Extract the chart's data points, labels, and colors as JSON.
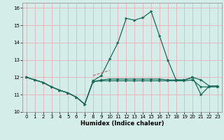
{
  "xlabel": "Humidex (Indice chaleur)",
  "xlim": [
    -0.5,
    23.5
  ],
  "ylim": [
    10,
    16.3
  ],
  "yticks": [
    10,
    11,
    12,
    13,
    14,
    15,
    16
  ],
  "xtick_labels": [
    "0",
    "1",
    "2",
    "3",
    "4",
    "5",
    "6",
    "7",
    "8",
    "9",
    "10",
    "11",
    "12",
    "13",
    "14",
    "15",
    "16",
    "17",
    "18",
    "19",
    "20",
    "21",
    "22",
    "23"
  ],
  "bg_color": "#d4ede8",
  "grid_color": "#e8b0b8",
  "line_color": "#1a6b5a",
  "red_line_color": "#c86060",
  "series_main": [
    12.0,
    11.85,
    11.7,
    11.45,
    11.25,
    11.1,
    10.85,
    10.45,
    11.8,
    12.1,
    13.05,
    14.0,
    15.4,
    15.3,
    15.45,
    15.8,
    14.4,
    13.0,
    11.85,
    11.85,
    12.0,
    11.0,
    11.5,
    11.5
  ],
  "series_flat_high": [
    12.0,
    11.85,
    11.7,
    11.45,
    11.25,
    11.1,
    10.85,
    10.45,
    11.75,
    11.85,
    11.9,
    11.9,
    11.9,
    11.9,
    11.9,
    11.9,
    11.9,
    11.85,
    11.85,
    11.85,
    12.0,
    11.85,
    11.5,
    11.5
  ],
  "series_flat_low": [
    12.0,
    11.85,
    11.7,
    11.45,
    11.25,
    11.1,
    10.85,
    10.45,
    11.75,
    11.8,
    11.8,
    11.8,
    11.8,
    11.8,
    11.8,
    11.8,
    11.8,
    11.8,
    11.8,
    11.8,
    11.85,
    11.45,
    11.45,
    11.45
  ],
  "series_red": [
    null,
    null,
    null,
    null,
    null,
    null,
    null,
    null,
    12.1,
    12.25,
    12.4,
    null,
    null,
    null,
    null,
    null,
    null,
    null,
    null,
    null,
    null,
    null,
    null,
    null
  ]
}
